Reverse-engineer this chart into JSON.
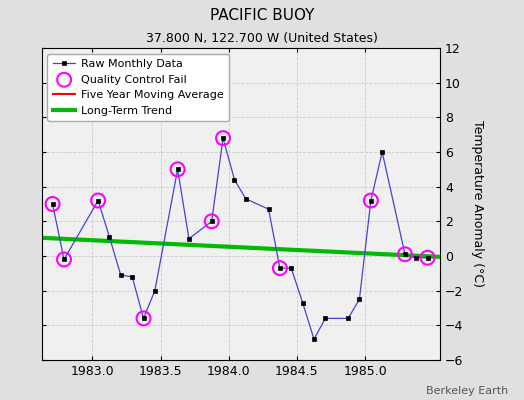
{
  "title": "PACIFIC BUOY",
  "subtitle": "37.800 N, 122.700 W (United States)",
  "credit": "Berkeley Earth",
  "ylabel": "Temperature Anomaly (°C)",
  "ylim": [
    -6,
    12
  ],
  "yticks": [
    -6,
    -4,
    -2,
    0,
    2,
    4,
    6,
    8,
    10,
    12
  ],
  "xlim": [
    1982.63,
    1985.55
  ],
  "xticks": [
    1983,
    1983.5,
    1984,
    1984.5,
    1985
  ],
  "raw_x": [
    1982.708,
    1982.792,
    1983.042,
    1983.125,
    1983.208,
    1983.292,
    1983.375,
    1983.458,
    1983.625,
    1983.708,
    1983.875,
    1983.958,
    1984.042,
    1984.125,
    1984.292,
    1984.375,
    1984.458,
    1984.542,
    1984.625,
    1984.708,
    1984.875,
    1984.958,
    1985.042,
    1985.125,
    1985.292,
    1985.375,
    1985.458
  ],
  "raw_y": [
    3.0,
    -0.2,
    3.2,
    1.1,
    -1.1,
    -1.2,
    -3.6,
    -2.0,
    5.0,
    1.0,
    2.0,
    6.8,
    4.4,
    3.3,
    2.7,
    -0.7,
    -0.7,
    -2.7,
    -4.8,
    -3.6,
    -3.6,
    -2.5,
    3.2,
    6.0,
    0.1,
    -0.1,
    -0.1
  ],
  "qc_fail_x": [
    1982.708,
    1982.792,
    1983.042,
    1983.375,
    1983.625,
    1983.875,
    1984.375,
    1983.958,
    1985.042,
    1985.292,
    1985.458
  ],
  "qc_fail_y": [
    3.0,
    -0.2,
    3.2,
    -3.6,
    5.0,
    2.0,
    -0.7,
    6.8,
    3.2,
    0.1,
    -0.1
  ],
  "trend_x": [
    1982.63,
    1985.55
  ],
  "trend_y": [
    1.05,
    -0.05
  ],
  "raw_color": "#4444cc",
  "raw_marker_color": "black",
  "qc_color": "magenta",
  "trend_color": "#00bb00",
  "mavg_color": "red",
  "background_color": "#e0e0e0",
  "plot_bg_color": "#f0f0f0",
  "title_fontsize": 11,
  "subtitle_fontsize": 9,
  "axis_fontsize": 9,
  "legend_fontsize": 8,
  "credit_fontsize": 8
}
